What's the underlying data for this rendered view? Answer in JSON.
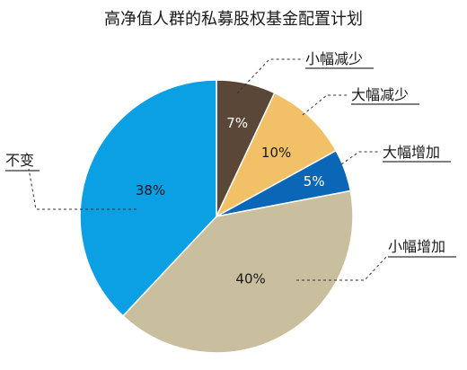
{
  "chart_data": {
    "type": "pie",
    "title": "高净值人群的私募股权基金配置计划",
    "start_angle_deg": 0,
    "direction": "clockwise",
    "slices": [
      {
        "label": "小幅减少",
        "value": 7,
        "value_label": "7%",
        "color": "#5a4738",
        "text_color": "#ffffff"
      },
      {
        "label": "大幅减少",
        "value": 10,
        "value_label": "10%",
        "color": "#f2c066",
        "text_color": "#1a1a1a"
      },
      {
        "label": "大幅增加",
        "value": 5,
        "value_label": "5%",
        "color": "#0a67b7",
        "text_color": "#ffffff"
      },
      {
        "label": "小幅增加",
        "value": 40,
        "value_label": "40%",
        "color": "#c9bf9f",
        "text_color": "#1a1a1a"
      },
      {
        "label": "不变",
        "value": 38,
        "value_label": "38%",
        "color": "#0b9fe3",
        "text_color": "#1a1a1a"
      }
    ],
    "legend": "leader-lines"
  }
}
